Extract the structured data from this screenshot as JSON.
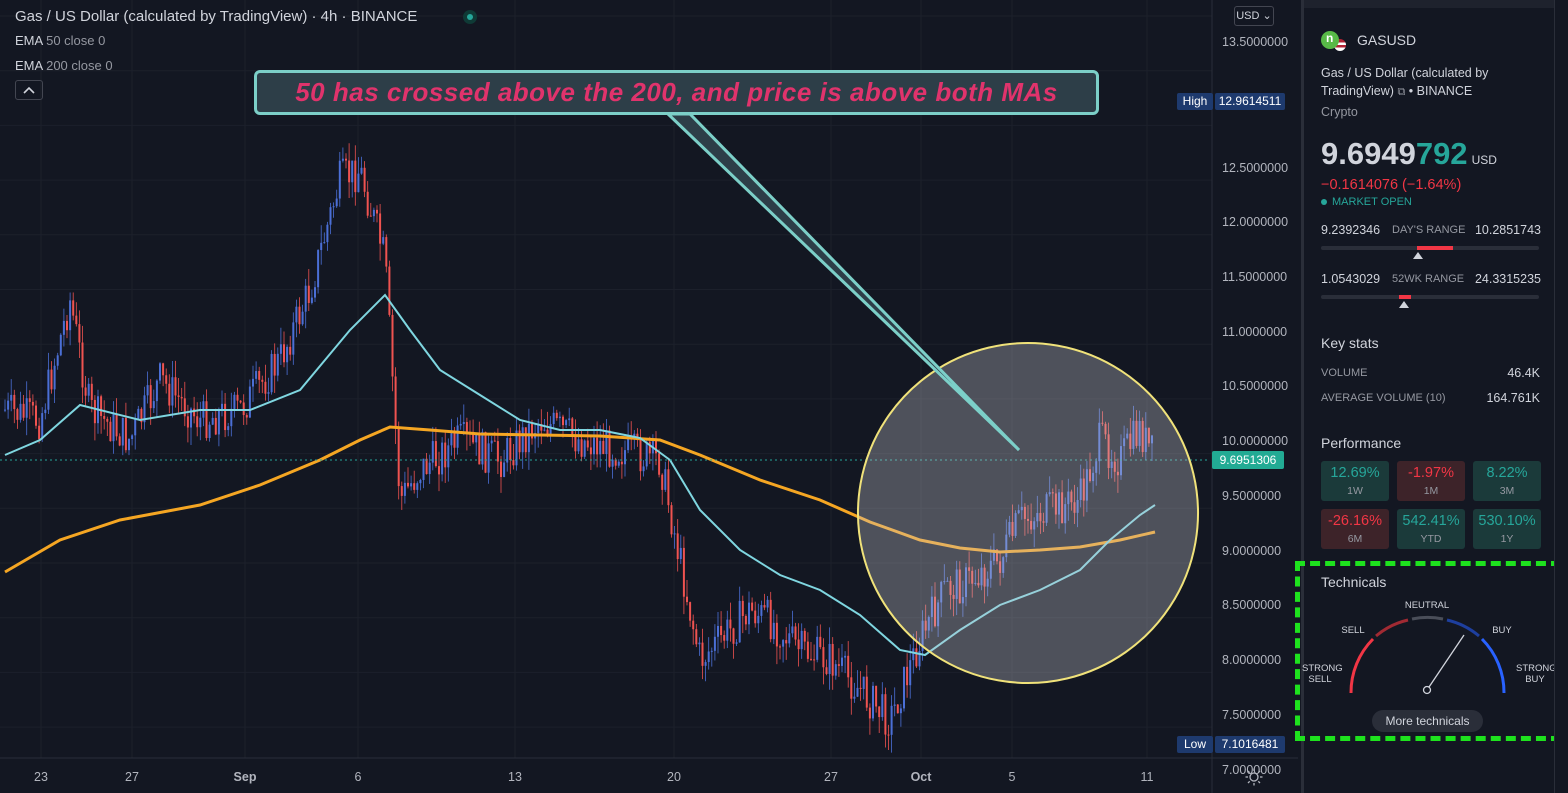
{
  "chart": {
    "title": "Gas / US Dollar (calculated by TradingView) · 4h · BINANCE",
    "indicators": [
      {
        "key": "EMA",
        "params": "50 close 0",
        "color": "#7fd6e0"
      },
      {
        "key": "EMA",
        "params": "200 close 0",
        "color": "#f5a623"
      }
    ],
    "currency_button": "USD",
    "collapse_icon": "chevron-up-icon",
    "annotation_text": "50 has crossed above the 200, and price is above both MAs",
    "price_axis": [
      "13.5000000",
      "12.5000000",
      "12.0000000",
      "11.5000000",
      "11.0000000",
      "10.5000000",
      "10.0000000",
      "9.5000000",
      "9.0000000",
      "8.5000000",
      "8.0000000",
      "7.5000000",
      "7.0000000"
    ],
    "time_axis": [
      "23",
      "27",
      "Sep",
      "6",
      "13",
      "20",
      "27",
      "Oct",
      "5",
      "11"
    ],
    "current_price_label": "9.6951306",
    "high": {
      "name": "High",
      "value": "12.9614511"
    },
    "low": {
      "name": "Low",
      "value": "7.1016481"
    },
    "colors": {
      "up": "#4b6fd6",
      "down": "#ef5350",
      "ema50": "#7fd6e0",
      "ema200": "#f5a623",
      "price_line": "#26a69a"
    }
  },
  "panel": {
    "symbol": "GASUSD",
    "description": "Gas / US Dollar (calculated by TradingView)",
    "external_icon": "external-link-icon",
    "exchange": "• BINANCE",
    "type": "Crypto",
    "price_int": "9.6949",
    "price_dec": "792",
    "price_currency": "USD",
    "change": "−0.1614076 (−1.64%)",
    "market_status": "MARKET OPEN",
    "days_range": {
      "low": "9.2392346",
      "name": "DAY'S RANGE",
      "high": "10.2851743"
    },
    "wk_range": {
      "low": "1.0543029",
      "name": "52WK RANGE",
      "high": "24.3315235"
    },
    "key_stats_title": "Key stats",
    "volume_label": "VOLUME",
    "volume_value": "46.4K",
    "avg_volume_label": "AVERAGE VOLUME (10)",
    "avg_volume_value": "164.761K",
    "performance_title": "Performance",
    "performance": [
      {
        "value": "12.69%",
        "period": "1W",
        "dir": "up"
      },
      {
        "value": "-1.97%",
        "period": "1M",
        "dir": "down"
      },
      {
        "value": "8.22%",
        "period": "3M",
        "dir": "up"
      },
      {
        "value": "-26.16%",
        "period": "6M",
        "dir": "down"
      },
      {
        "value": "542.41%",
        "period": "YTD",
        "dir": "up"
      },
      {
        "value": "530.10%",
        "period": "1Y",
        "dir": "up"
      }
    ],
    "technicals_title": "Technicals",
    "gauge": {
      "strong_sell": "STRONG SELL",
      "sell": "SELL",
      "neutral": "NEUTRAL",
      "buy": "BUY",
      "strong_buy": "STRONG BUY"
    },
    "more_technicals": "More technicals"
  }
}
